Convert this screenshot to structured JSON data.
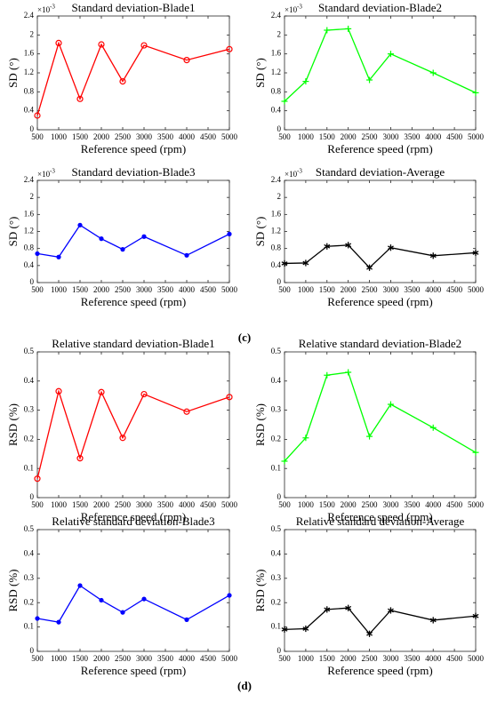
{
  "chart_data": [
    {
      "type": "line",
      "title": "Standard deviation-Blade1",
      "xlabel": "Reference speed (rpm)",
      "ylabel": "SD (°)",
      "y_multiplier": {
        "base": "×10",
        "exponent": "-3"
      },
      "x": [
        500,
        1000,
        1500,
        2000,
        2500,
        3000,
        4000,
        5000
      ],
      "values": [
        0.3,
        1.83,
        0.65,
        1.8,
        1.02,
        1.78,
        1.47,
        1.7
      ],
      "color": "#ff0000",
      "marker": "circle",
      "xlim": [
        500,
        5000
      ],
      "xticks": [
        500,
        1000,
        1500,
        2000,
        2500,
        3000,
        3500,
        4000,
        4500,
        5000
      ],
      "ylim": [
        0,
        2.4
      ],
      "yticks": [
        0,
        0.4,
        0.8,
        1.2,
        1.6,
        2,
        2.4
      ]
    },
    {
      "type": "line",
      "title": "Standard deviation-Blade2",
      "xlabel": "Reference speed (rpm)",
      "ylabel": "SD (°)",
      "y_multiplier": {
        "base": "×10",
        "exponent": "-3"
      },
      "x": [
        500,
        1000,
        1500,
        2000,
        2500,
        3000,
        4000,
        5000
      ],
      "values": [
        0.6,
        1.02,
        2.1,
        2.13,
        1.05,
        1.6,
        1.2,
        0.78
      ],
      "color": "#00ff00",
      "marker": "plus",
      "xlim": [
        500,
        5000
      ],
      "xticks": [
        500,
        1000,
        1500,
        2000,
        2500,
        3000,
        3500,
        4000,
        4500,
        5000
      ],
      "ylim": [
        0,
        2.4
      ],
      "yticks": [
        0,
        0.4,
        0.8,
        1.2,
        1.6,
        2,
        2.4
      ]
    },
    {
      "type": "line",
      "title": "Standard deviation-Blade3",
      "xlabel": "Reference speed (rpm)",
      "ylabel": "SD (°)",
      "y_multiplier": {
        "base": "×10",
        "exponent": "-3"
      },
      "x": [
        500,
        1000,
        1500,
        2000,
        2500,
        3000,
        4000,
        5000
      ],
      "values": [
        0.68,
        0.6,
        1.35,
        1.03,
        0.78,
        1.08,
        0.64,
        1.14
      ],
      "color": "#0000ff",
      "marker": "dot",
      "xlim": [
        500,
        5000
      ],
      "xticks": [
        500,
        1000,
        1500,
        2000,
        2500,
        3000,
        3500,
        4000,
        4500,
        5000
      ],
      "ylim": [
        0,
        2.4
      ],
      "yticks": [
        0,
        0.4,
        0.8,
        1.2,
        1.6,
        2,
        2.4
      ]
    },
    {
      "type": "line",
      "title": "Standard deviation-Average",
      "xlabel": "Reference speed (rpm)",
      "ylabel": "SD (°)",
      "y_multiplier": {
        "base": "×10",
        "exponent": "-3"
      },
      "x": [
        500,
        1000,
        1500,
        2000,
        2500,
        3000,
        4000,
        5000
      ],
      "values": [
        0.45,
        0.46,
        0.85,
        0.88,
        0.35,
        0.82,
        0.63,
        0.7
      ],
      "color": "#000000",
      "marker": "star",
      "xlim": [
        500,
        5000
      ],
      "xticks": [
        500,
        1000,
        1500,
        2000,
        2500,
        3000,
        3500,
        4000,
        4500,
        5000
      ],
      "ylim": [
        0,
        2.4
      ],
      "yticks": [
        0,
        0.4,
        0.8,
        1.2,
        1.6,
        2,
        2.4
      ]
    },
    {
      "type": "line",
      "title": "Relative standard deviation-Blade1",
      "xlabel": "Reference speed (rpm)",
      "ylabel": "RSD (%)",
      "x": [
        500,
        1000,
        1500,
        2000,
        2500,
        3000,
        4000,
        5000
      ],
      "values": [
        0.065,
        0.365,
        0.135,
        0.362,
        0.205,
        0.355,
        0.295,
        0.345
      ],
      "color": "#ff0000",
      "marker": "circle",
      "xlim": [
        500,
        5000
      ],
      "xticks": [
        500,
        1000,
        1500,
        2000,
        2500,
        3000,
        3500,
        4000,
        4500,
        5000
      ],
      "ylim": [
        0,
        0.5
      ],
      "yticks": [
        0,
        0.1,
        0.2,
        0.3,
        0.4,
        0.5
      ]
    },
    {
      "type": "line",
      "title": "Relative standard deviation-Blade2",
      "xlabel": "Reference speed (rpm)",
      "ylabel": "RSD (%)",
      "x": [
        500,
        1000,
        1500,
        2000,
        2500,
        3000,
        4000,
        5000
      ],
      "values": [
        0.125,
        0.205,
        0.42,
        0.43,
        0.21,
        0.32,
        0.24,
        0.155
      ],
      "color": "#00ff00",
      "marker": "plus",
      "xlim": [
        500,
        5000
      ],
      "xticks": [
        500,
        1000,
        1500,
        2000,
        2500,
        3000,
        3500,
        4000,
        4500,
        5000
      ],
      "ylim": [
        0,
        0.5
      ],
      "yticks": [
        0,
        0.1,
        0.2,
        0.3,
        0.4,
        0.5
      ]
    },
    {
      "type": "line",
      "title": "Relative standard deviation-Blade3",
      "xlabel": "Reference speed (rpm)",
      "ylabel": "RSD (%)",
      "x": [
        500,
        1000,
        1500,
        2000,
        2500,
        3000,
        4000,
        5000
      ],
      "values": [
        0.135,
        0.12,
        0.27,
        0.21,
        0.16,
        0.215,
        0.13,
        0.23
      ],
      "color": "#0000ff",
      "marker": "dot",
      "xlim": [
        500,
        5000
      ],
      "xticks": [
        500,
        1000,
        1500,
        2000,
        2500,
        3000,
        3500,
        4000,
        4500,
        5000
      ],
      "ylim": [
        0,
        0.5
      ],
      "yticks": [
        0,
        0.1,
        0.2,
        0.3,
        0.4,
        0.5
      ]
    },
    {
      "type": "line",
      "title": "Relative standard deviation-Average",
      "xlabel": "Reference speed (rpm)",
      "ylabel": "RSD (%)",
      "x": [
        500,
        1000,
        1500,
        2000,
        2500,
        3000,
        4000,
        5000
      ],
      "values": [
        0.09,
        0.093,
        0.172,
        0.178,
        0.072,
        0.168,
        0.128,
        0.145
      ],
      "color": "#000000",
      "marker": "star",
      "xlim": [
        500,
        5000
      ],
      "xticks": [
        500,
        1000,
        1500,
        2000,
        2500,
        3000,
        3500,
        4000,
        4500,
        5000
      ],
      "ylim": [
        0,
        0.5
      ],
      "yticks": [
        0,
        0.1,
        0.2,
        0.3,
        0.4,
        0.5
      ]
    }
  ],
  "figure_labels": [
    "(c)",
    "(d)"
  ]
}
